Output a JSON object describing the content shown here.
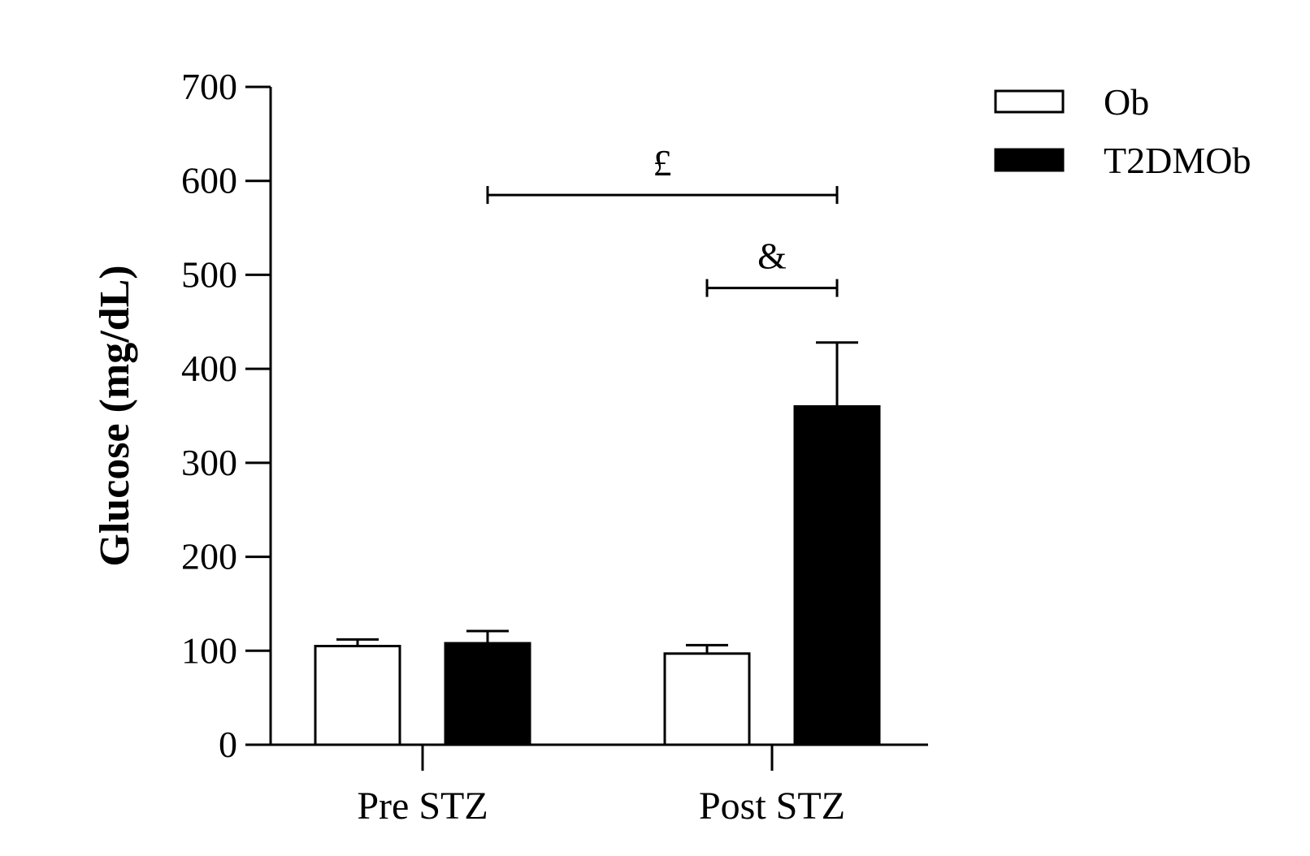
{
  "chart_data": {
    "type": "bar",
    "ylabel": "Glucose (mg/dL)",
    "xlabel": "",
    "ylim": [
      0,
      700
    ],
    "yticks": [
      0,
      100,
      200,
      300,
      400,
      500,
      600,
      700
    ],
    "categories": [
      "Pre STZ",
      "Post STZ"
    ],
    "series": [
      {
        "name": "Ob",
        "values": [
          105,
          97
        ],
        "errors": [
          7,
          9
        ],
        "fill": "#ffffff",
        "stroke": "#000000"
      },
      {
        "name": "T2DMOb",
        "values": [
          108,
          360
        ],
        "errors": [
          13,
          68
        ],
        "fill": "#000000",
        "stroke": "#000000"
      }
    ],
    "legend": {
      "position": "top-right",
      "entries": [
        "Ob",
        "T2DMOb"
      ]
    },
    "annotations": [
      {
        "text": "£",
        "from": {
          "category": 0,
          "series": 1
        },
        "to": {
          "category": 1,
          "series": 1
        },
        "y": 585
      },
      {
        "text": "&",
        "from": {
          "category": 1,
          "series": 0
        },
        "to": {
          "category": 1,
          "series": 1
        },
        "y": 486
      }
    ],
    "grid": false
  }
}
